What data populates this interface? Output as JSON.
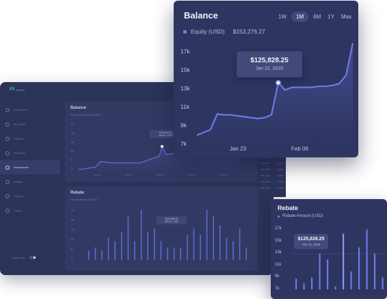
{
  "dashboard": {
    "logo": "FX",
    "logo_text": "finsuite",
    "nav": [
      {
        "label": "Dashboard",
        "icon": "grid-icon"
      },
      {
        "label": "My Profile",
        "icon": "user-icon"
      },
      {
        "label": "Deposit",
        "icon": "wallet-icon"
      },
      {
        "label": "Withdraw",
        "icon": "withdraw-icon"
      },
      {
        "label": "Investments",
        "icon": "chart-icon"
      },
      {
        "label": "Affiliate",
        "icon": "people-icon"
      },
      {
        "label": "Support",
        "icon": "support-icon"
      },
      {
        "label": "Logout",
        "icon": "logout-icon"
      }
    ],
    "active_nav": 4,
    "dark_mode_label": "Dark mode",
    "mini_balance": {
      "title": "Balance",
      "legend": "Equity (USD)",
      "value": "$125,828.25",
      "tooltip_value": "$125,828.25",
      "tooltip_date": "Jan 31, 2020",
      "x_ticks": [
        "Feb 04",
        "Feb 05",
        "Feb 06",
        "Feb 07",
        "Feb 08"
      ],
      "y_ticks": [
        "17k",
        "15k",
        "13k",
        "11k",
        "9k",
        "7k"
      ]
    },
    "mini_rebate": {
      "title": "Rebate",
      "legend": "Rebate Amount (USD)",
      "tooltip_value": "$125,828.25",
      "tooltip_date": "Feb 14, 2020",
      "y_ticks": [
        "17k",
        "15k",
        "13k",
        "11k",
        "9k",
        "7k"
      ],
      "bars": [
        3,
        4,
        3,
        7,
        6,
        9,
        14,
        6,
        16,
        9,
        10,
        6,
        4,
        4,
        4,
        8,
        10,
        8,
        16,
        14,
        11,
        7,
        6,
        10,
        4
      ]
    },
    "table_rows": [
      {
        "date": "Jan 2020",
        "value": "0.00%"
      },
      {
        "date": "Jan 2020",
        "value": "0.00%"
      },
      {
        "date": "Feb 2020",
        "value": "0.00%"
      },
      {
        "date": "Feb 2020",
        "value": "0.00%"
      },
      {
        "date": "Feb 2020",
        "value": "0.00%"
      },
      {
        "date": "Feb 2020",
        "value": "0.00%"
      }
    ]
  },
  "balance_card": {
    "title": "Balance",
    "ranges": [
      "1W",
      "1M",
      "6M",
      "1Y",
      "Max"
    ],
    "active_range": "1M",
    "legend_label": "Equity (USD)",
    "legend_value": "$153,276.27",
    "tooltip_value": "$125,828.25",
    "tooltip_date": "Jan 31, 2020",
    "accent": "#6f79e6"
  },
  "rebate_card": {
    "title": "Rebate",
    "legend_label": "Rebate Amount (USD)",
    "tooltip_value": "$125,828.25",
    "tooltip_date": "Feb 14, 2020",
    "accent": "#6f79e6"
  },
  "chart_data": [
    {
      "type": "area",
      "title": "Balance",
      "series": [
        {
          "name": "Equity (USD)",
          "values": [
            8.0,
            8.3,
            8.6,
            10.3,
            10.2,
            10.2,
            10.1,
            10.0,
            9.9,
            9.8,
            9.9,
            10.2,
            13.7,
            12.9,
            13.2,
            13.2,
            13.2,
            13.2,
            13.3,
            13.3,
            13.4,
            13.6,
            14.5,
            18.0
          ]
        }
      ],
      "x_ticks": [
        "Jan 23",
        "Feb 06"
      ],
      "y_ticks": [
        "17k",
        "15k",
        "13k",
        "11k",
        "9k",
        "7k"
      ],
      "ylim": [
        7,
        18
      ],
      "highlight": {
        "index": 12,
        "label": "$125,828.25",
        "date": "Jan 31, 2020"
      }
    },
    {
      "type": "bar",
      "title": "Rebate",
      "series": [
        {
          "name": "Rebate Amount (USD)",
          "values": [
            8.8,
            8.0,
            9.0,
            13.0,
            12.0,
            7.5,
            16.3,
            10.0,
            14.0,
            17.0,
            13.0,
            9.0
          ]
        }
      ],
      "y_ticks": [
        "17k",
        "15k",
        "13k",
        "11k",
        "9k",
        "7k"
      ],
      "ylim": [
        7,
        17.5
      ],
      "highlight": {
        "index": 6,
        "label": "$125,828.25",
        "date": "Feb 14, 2020"
      }
    }
  ]
}
